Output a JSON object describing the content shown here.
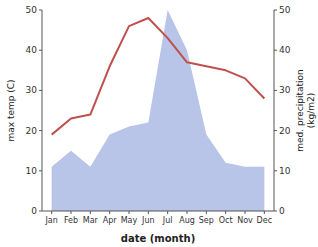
{
  "chart_data": {
    "type": "line",
    "categories": [
      "Jan",
      "Feb",
      "Mar",
      "Apr",
      "May",
      "Jun",
      "Jul",
      "Aug",
      "Sep",
      "Oct",
      "Nov",
      "Dec"
    ],
    "xlabel": "date (month)",
    "ylabel": "max temp (C)",
    "y2label": [
      "med. precipitation",
      "(kg/m2)"
    ],
    "ylim": [
      0,
      50
    ],
    "yticks": [
      0,
      10,
      20,
      30,
      40,
      50
    ],
    "y2lim": [
      0,
      50
    ],
    "y2ticks": [
      0,
      10,
      20,
      30,
      40,
      50
    ],
    "grid": false,
    "series": [
      {
        "type": "area",
        "axis": "y2",
        "color": "#b8c4e8",
        "values": [
          11,
          15,
          11,
          19,
          21,
          22,
          50,
          40,
          19,
          12,
          11,
          11
        ]
      },
      {
        "type": "line",
        "color": "#c0504d",
        "values": [
          19,
          23,
          24,
          36,
          46,
          48,
          43,
          37,
          36,
          35,
          33,
          28
        ]
      }
    ]
  }
}
